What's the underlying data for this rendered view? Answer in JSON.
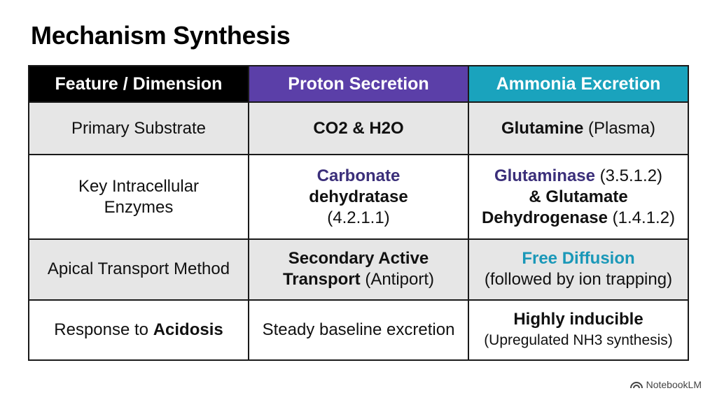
{
  "title": "Mechanism Synthesis",
  "headers": [
    "Feature / Dimension",
    "Proton Secretion",
    "Ammonia Excretion"
  ],
  "header_colors": [
    "#000000",
    "#5b3fa8",
    "#1aa3bd"
  ],
  "rows": [
    {
      "feature": "Primary Substrate",
      "proton": {
        "bold": "CO2 & H2O"
      },
      "ammonia": {
        "bold": "Glutamine",
        "normal": "(Plasma)"
      }
    },
    {
      "feature": "Key Intracellular Enzymes",
      "proton": {
        "accent": "Carbonate",
        "bold": "dehydratase",
        "normal": "(4.2.1.1)"
      },
      "ammonia": {
        "line1_bold": "Glutaminase",
        "line1_normal": "(3.5.1.2)",
        "line2": "& Glutamate",
        "line3_bold": "Dehydrogenase",
        "line3_normal": "(1.4.1.2)"
      }
    },
    {
      "feature": "Apical Transport Method",
      "proton": {
        "line1_bold": "Secondary Active",
        "line2_bold": "Transport",
        "line2_normal": "(Antiport)"
      },
      "ammonia": {
        "accent": "Free Diffusion",
        "normal": "(followed by ion trapping)"
      }
    },
    {
      "feature_normal": "Response to",
      "feature_bold": "Acidosis",
      "proton": {
        "normal": "Steady baseline excretion"
      },
      "ammonia": {
        "bold": "Highly inducible",
        "normal": "(Upregulated NH3 synthesis)"
      }
    }
  ],
  "brand": {
    "icon": "notebooklm-logo-icon",
    "label": "NotebookLM"
  }
}
